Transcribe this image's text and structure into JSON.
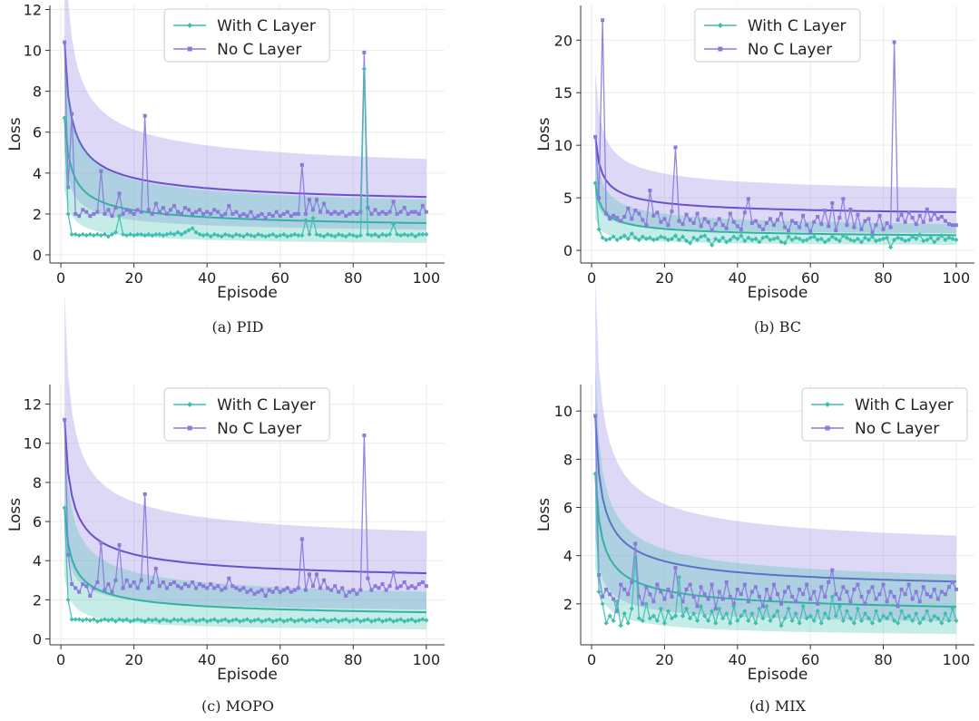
{
  "colors": {
    "with_c": "#3ebfae",
    "no_c": "#8a78db",
    "no_c_smooth": "#6a4fcf",
    "with_c_smooth": "#2fb3a2",
    "band_with": "#3ebfae",
    "band_no": "#9b8ae6",
    "grid": "#ececec"
  },
  "chart_data": [
    {
      "type": "line",
      "caption": "(a) PID",
      "xlabel": "Episode",
      "ylabel": "Loss",
      "xlim": [
        -3,
        105
      ],
      "ylim": [
        -0.4,
        12.2
      ],
      "xticks": [
        0,
        20,
        40,
        60,
        80,
        100
      ],
      "yticks": [
        0,
        2,
        4,
        6,
        8,
        10,
        12
      ],
      "legend": "top-center",
      "series": [
        {
          "name": "With C Layer",
          "values": [
            6.7,
            2.0,
            1.0,
            1.0,
            0.95,
            1.0,
            0.95,
            1.0,
            0.95,
            1.0,
            0.95,
            1.0,
            0.9,
            1.0,
            1.1,
            1.9,
            1.0,
            0.95,
            1.0,
            0.95,
            1.0,
            1.0,
            0.95,
            1.0,
            0.95,
            1.0,
            1.0,
            0.95,
            1.0,
            1.05,
            1.0,
            1.1,
            1.0,
            1.1,
            1.2,
            1.3,
            1.1,
            1.0,
            0.95,
            1.0,
            0.9,
            1.0,
            0.95,
            0.9,
            1.0,
            0.95,
            0.9,
            1.0,
            0.95,
            0.9,
            1.0,
            0.95,
            0.9,
            1.0,
            0.95,
            0.9,
            0.95,
            1.0,
            0.9,
            0.95,
            1.0,
            0.9,
            0.95,
            1.0,
            0.95,
            0.95,
            1.7,
            1.0,
            1.8,
            1.0,
            0.95,
            0.9,
            1.0,
            0.95,
            0.9,
            1.0,
            0.95,
            0.9,
            1.0,
            0.95,
            0.9,
            0.95,
            9.1,
            1.0,
            0.95,
            1.0,
            0.9,
            1.0,
            0.95,
            1.0,
            1.5,
            1.0,
            0.95,
            1.0,
            0.95,
            1.0,
            0.9,
            1.0,
            1.0,
            1.0
          ]
        },
        {
          "name": "No C Layer",
          "values": [
            10.4,
            3.3,
            6.9,
            2.0,
            1.9,
            2.2,
            2.1,
            1.9,
            2.0,
            2.1,
            4.1,
            2.0,
            2.2,
            1.9,
            2.3,
            3.0,
            2.0,
            2.2,
            2.1,
            2.0,
            2.2,
            2.1,
            6.8,
            2.2,
            2.0,
            2.5,
            2.1,
            2.3,
            2.0,
            2.2,
            2.4,
            2.1,
            2.0,
            2.3,
            2.2,
            2.0,
            2.1,
            2.2,
            2.0,
            2.1,
            2.0,
            2.2,
            2.1,
            1.9,
            2.0,
            2.4,
            2.0,
            2.1,
            1.9,
            2.0,
            1.9,
            2.1,
            1.8,
            1.9,
            2.0,
            1.8,
            2.0,
            1.9,
            2.1,
            1.9,
            2.0,
            2.1,
            1.9,
            2.0,
            2.0,
            4.4,
            2.0,
            2.7,
            2.2,
            2.7,
            2.1,
            2.5,
            2.1,
            2.0,
            2.1,
            2.0,
            2.1,
            1.9,
            2.0,
            2.1,
            2.0,
            2.1,
            9.9,
            2.3,
            2.0,
            2.2,
            2.0,
            2.1,
            2.0,
            2.1,
            2.6,
            2.0,
            2.1,
            2.3,
            2.0,
            2.1,
            2.1,
            2.0,
            2.4,
            2.1
          ]
        }
      ]
    },
    {
      "type": "line",
      "caption": "(b) BC",
      "xlabel": "Episode",
      "ylabel": "Loss",
      "xlim": [
        -3,
        105
      ],
      "ylim": [
        -1.2,
        23.3
      ],
      "xticks": [
        0,
        20,
        40,
        60,
        80,
        100
      ],
      "yticks": [
        0,
        5,
        10,
        15,
        20
      ],
      "legend": "top-center",
      "series": [
        {
          "name": "With C Layer",
          "values": [
            6.4,
            2.0,
            1.2,
            1.0,
            1.1,
            1.3,
            1.0,
            1.2,
            1.4,
            1.1,
            1.6,
            1.2,
            1.0,
            1.3,
            1.1,
            1.2,
            1.0,
            1.1,
            1.3,
            1.2,
            1.0,
            1.1,
            1.4,
            1.0,
            1.3,
            0.9,
            0.7,
            1.2,
            1.0,
            1.3,
            1.4,
            1.0,
            0.5,
            1.1,
            0.9,
            1.2,
            0.8,
            1.0,
            1.3,
            1.1,
            1.4,
            0.9,
            1.2,
            1.0,
            1.1,
            0.8,
            1.2,
            1.3,
            1.0,
            1.1,
            1.2,
            0.8,
            0.7,
            1.3,
            1.0,
            1.2,
            1.1,
            0.9,
            1.0,
            1.2,
            1.3,
            1.0,
            1.1,
            0.8,
            1.0,
            1.3,
            1.1,
            0.9,
            1.4,
            1.2,
            1.0,
            0.9,
            1.1,
            0.8,
            1.2,
            1.0,
            1.3,
            0.9,
            1.0,
            1.1,
            1.2,
            0.3,
            1.0,
            1.2,
            1.1,
            0.9,
            1.0,
            1.3,
            1.1,
            1.5,
            0.9,
            1.0,
            1.2,
            0.8,
            1.1,
            1.4,
            1.0,
            1.2,
            1.1,
            1.0
          ]
        },
        {
          "name": "No C Layer",
          "values": [
            10.8,
            5.0,
            21.9,
            3.5,
            3.0,
            3.3,
            3.1,
            2.8,
            3.2,
            4.0,
            3.0,
            3.8,
            3.5,
            2.9,
            2.4,
            5.7,
            3.3,
            3.6,
            2.7,
            3.0,
            2.4,
            3.7,
            9.8,
            2.8,
            2.5,
            3.4,
            2.9,
            2.6,
            3.5,
            2.3,
            3.0,
            2.7,
            1.9,
            2.5,
            3.0,
            2.4,
            2.1,
            3.5,
            2.7,
            2.3,
            2.0,
            3.6,
            4.9,
            2.6,
            2.8,
            2.3,
            2.0,
            2.6,
            3.0,
            2.4,
            2.9,
            3.5,
            2.2,
            1.9,
            2.8,
            2.6,
            2.2,
            3.3,
            2.4,
            1.8,
            2.7,
            3.2,
            2.5,
            3.8,
            2.3,
            4.5,
            1.9,
            3.1,
            4.9,
            2.4,
            3.9,
            2.2,
            3.4,
            2.0,
            2.8,
            3.0,
            1.7,
            2.4,
            3.3,
            2.0,
            2.6,
            2.2,
            19.8,
            2.9,
            3.4,
            2.7,
            3.6,
            3.1,
            2.5,
            3.3,
            2.7,
            3.9,
            2.9,
            3.5,
            3.0,
            3.2,
            2.8,
            2.5,
            2.4,
            2.4
          ]
        }
      ]
    },
    {
      "type": "line",
      "caption": "(c) MOPO",
      "xlabel": "Episode",
      "ylabel": "Loss",
      "xlim": [
        -3,
        105
      ],
      "ylim": [
        -0.3,
        13.0
      ],
      "xticks": [
        0,
        20,
        40,
        60,
        80,
        100
      ],
      "yticks": [
        0,
        2,
        4,
        6,
        8,
        10,
        12
      ],
      "legend": "top-center",
      "series": [
        {
          "name": "With C Layer",
          "values": [
            6.7,
            2.0,
            1.0,
            1.0,
            1.0,
            0.95,
            1.0,
            0.95,
            1.0,
            0.9,
            0.95,
            1.0,
            0.95,
            1.0,
            0.9,
            1.0,
            0.95,
            1.0,
            0.9,
            0.95,
            1.0,
            0.95,
            0.9,
            1.0,
            0.95,
            1.0,
            0.9,
            1.0,
            0.95,
            0.9,
            1.0,
            0.95,
            1.0,
            0.9,
            0.95,
            1.0,
            0.9,
            0.95,
            1.0,
            0.9,
            0.95,
            1.0,
            0.9,
            0.95,
            1.0,
            0.9,
            0.95,
            1.0,
            0.9,
            0.95,
            1.0,
            0.9,
            0.95,
            1.0,
            0.9,
            0.95,
            1.0,
            0.9,
            0.95,
            1.0,
            0.9,
            0.95,
            1.0,
            0.9,
            0.95,
            1.0,
            0.9,
            0.95,
            1.0,
            0.9,
            0.95,
            1.0,
            0.9,
            0.95,
            1.0,
            0.9,
            0.95,
            1.0,
            0.9,
            0.95,
            1.0,
            0.9,
            0.95,
            1.0,
            0.9,
            0.95,
            1.0,
            0.9,
            0.95,
            1.0,
            0.9,
            0.95,
            1.0,
            0.9,
            0.95,
            1.0,
            0.9,
            0.95,
            1.0,
            0.95
          ]
        },
        {
          "name": "No C Layer",
          "values": [
            11.2,
            4.3,
            2.8,
            2.6,
            2.4,
            2.8,
            2.7,
            2.2,
            2.6,
            2.9,
            4.9,
            2.5,
            2.8,
            2.4,
            3.0,
            4.8,
            2.6,
            3.0,
            2.7,
            2.9,
            2.6,
            3.0,
            7.4,
            2.6,
            2.9,
            3.6,
            2.7,
            2.9,
            2.6,
            2.8,
            2.9,
            2.7,
            2.6,
            2.8,
            2.7,
            2.9,
            2.6,
            2.8,
            2.7,
            2.6,
            2.8,
            2.6,
            2.7,
            2.5,
            2.6,
            3.1,
            2.7,
            2.6,
            2.5,
            2.6,
            2.4,
            2.5,
            2.3,
            2.4,
            2.5,
            2.2,
            2.5,
            2.4,
            2.6,
            2.4,
            2.5,
            2.6,
            2.4,
            2.5,
            2.6,
            5.1,
            2.5,
            3.3,
            2.7,
            3.3,
            2.6,
            3.0,
            2.6,
            2.5,
            2.7,
            2.4,
            2.6,
            2.2,
            2.4,
            2.5,
            2.3,
            2.5,
            10.4,
            3.1,
            2.5,
            2.7,
            2.6,
            2.8,
            2.5,
            2.7,
            3.4,
            2.6,
            2.7,
            2.9,
            2.6,
            2.7,
            2.6,
            2.8,
            2.9,
            2.7
          ]
        }
      ]
    },
    {
      "type": "line",
      "caption": "(d) MIX",
      "xlabel": "Episode",
      "ylabel": "Loss",
      "xlim": [
        -3,
        105
      ],
      "ylim": [
        0.3,
        11.1
      ],
      "xticks": [
        0,
        20,
        40,
        60,
        80,
        100
      ],
      "yticks": [
        2,
        4,
        6,
        8,
        10
      ],
      "legend": "top-right",
      "series": [
        {
          "name": "With C Layer",
          "values": [
            7.4,
            2.5,
            2.0,
            1.2,
            1.5,
            1.3,
            2.1,
            1.1,
            1.6,
            1.2,
            1.8,
            3.9,
            1.4,
            1.3,
            2.0,
            1.4,
            1.5,
            1.3,
            1.8,
            1.2,
            1.7,
            1.4,
            1.5,
            3.1,
            1.5,
            1.8,
            1.4,
            1.6,
            1.3,
            1.9,
            1.5,
            1.3,
            1.7,
            1.2,
            1.8,
            1.4,
            1.6,
            1.2,
            1.9,
            1.3,
            1.5,
            1.7,
            1.3,
            1.6,
            1.2,
            1.8,
            1.4,
            1.9,
            1.3,
            1.5,
            1.7,
            1.1,
            1.4,
            1.8,
            1.3,
            1.6,
            1.2,
            1.9,
            1.4,
            1.5,
            1.3,
            1.7,
            1.2,
            1.6,
            1.4,
            2.3,
            1.5,
            1.9,
            1.3,
            1.7,
            1.4,
            1.2,
            1.8,
            1.3,
            1.6,
            1.4,
            1.2,
            1.7,
            1.3,
            1.5,
            1.4,
            1.6,
            1.3,
            1.2,
            1.7,
            1.4,
            1.5,
            1.3,
            1.6,
            1.2,
            1.4,
            1.7,
            1.3,
            1.5,
            1.4,
            1.2,
            1.6,
            1.3,
            1.8,
            1.3
          ]
        },
        {
          "name": "No C Layer",
          "values": [
            9.8,
            3.2,
            2.3,
            2.6,
            2.4,
            2.2,
            1.7,
            2.8,
            2.6,
            2.4,
            2.9,
            4.5,
            2.3,
            2.0,
            2.7,
            2.4,
            2.1,
            2.8,
            2.5,
            2.2,
            2.6,
            2.3,
            3.5,
            2.4,
            2.1,
            2.6,
            2.8,
            2.3,
            1.9,
            2.7,
            2.4,
            2.2,
            2.8,
            1.8,
            2.5,
            2.2,
            2.9,
            2.3,
            2.0,
            2.6,
            2.4,
            2.8,
            2.1,
            2.5,
            2.7,
            2.3,
            1.9,
            2.6,
            2.2,
            2.8,
            2.4,
            2.0,
            2.5,
            2.7,
            2.3,
            2.1,
            2.6,
            2.4,
            2.8,
            2.2,
            2.5,
            2.0,
            2.7,
            2.3,
            2.9,
            3.4,
            2.4,
            2.2,
            2.7,
            2.5,
            2.1,
            2.6,
            2.8,
            2.3,
            2.0,
            2.5,
            2.7,
            2.2,
            2.4,
            2.8,
            2.1,
            2.5,
            2.3,
            1.9,
            2.6,
            2.4,
            2.8,
            2.2,
            2.5,
            2.1,
            2.7,
            2.4,
            2.3,
            2.6,
            2.2,
            2.5,
            2.4,
            2.7,
            2.9,
            2.6
          ]
        }
      ]
    }
  ]
}
